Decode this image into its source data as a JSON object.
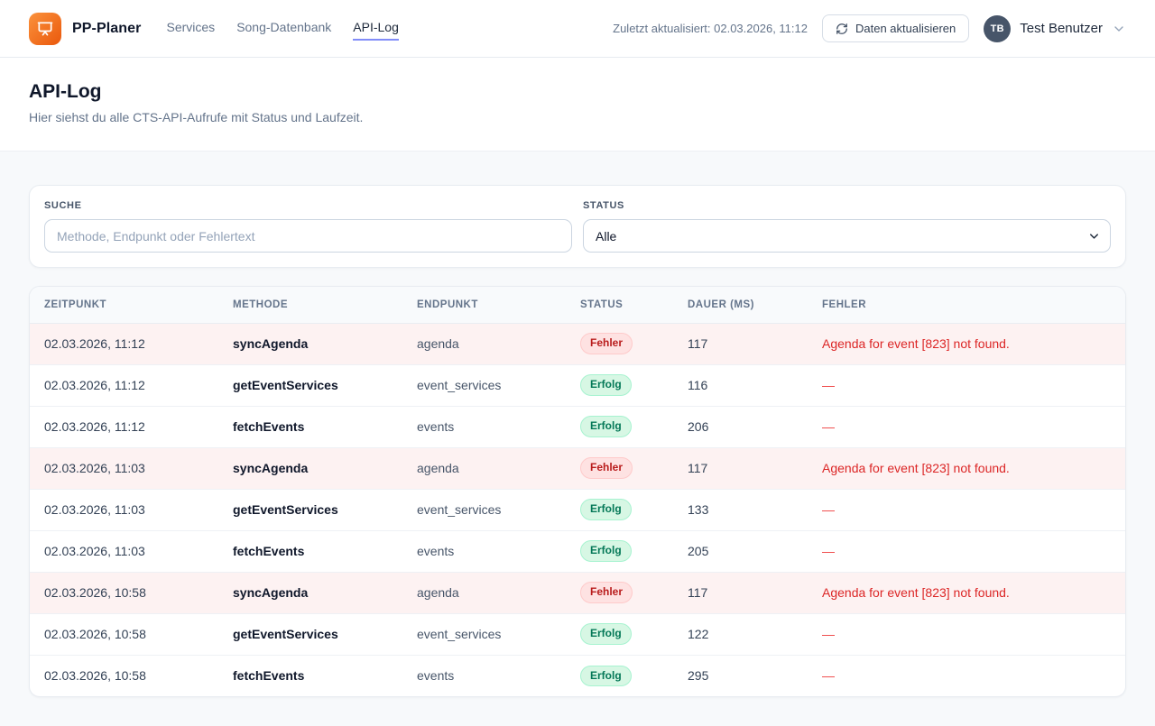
{
  "brand": {
    "name": "PP-Planer"
  },
  "nav": {
    "items": [
      {
        "label": "Services",
        "active": false
      },
      {
        "label": "Song-Datenbank",
        "active": false
      },
      {
        "label": "API-Log",
        "active": true
      }
    ]
  },
  "header_bar": {
    "last_updated": "Zuletzt aktualisiert: 02.03.2026, 11:12",
    "refresh_label": "Daten aktualisieren",
    "user": {
      "initials": "TB",
      "name": "Test Benutzer"
    }
  },
  "page": {
    "title": "API-Log",
    "subtitle": "Hier siehst du alle CTS-API-Aufrufe mit Status und Laufzeit."
  },
  "filters": {
    "search_label": "Suche",
    "search_placeholder": "Methode, Endpunkt oder Fehlertext",
    "search_value": "",
    "status_label": "Status",
    "status_value": "Alle"
  },
  "table": {
    "columns": [
      "Zeitpunkt",
      "Methode",
      "Endpunkt",
      "Status",
      "Dauer (ms)",
      "Fehler"
    ],
    "rows": [
      {
        "timestamp": "02.03.2026, 11:12",
        "method": "syncAgenda",
        "endpoint": "agenda",
        "status": "Fehler",
        "status_type": "error",
        "duration_ms": "117",
        "error": "Agenda for event [823] not found."
      },
      {
        "timestamp": "02.03.2026, 11:12",
        "method": "getEventServices",
        "endpoint": "event_services",
        "status": "Erfolg",
        "status_type": "success",
        "duration_ms": "116",
        "error": "—"
      },
      {
        "timestamp": "02.03.2026, 11:12",
        "method": "fetchEvents",
        "endpoint": "events",
        "status": "Erfolg",
        "status_type": "success",
        "duration_ms": "206",
        "error": "—"
      },
      {
        "timestamp": "02.03.2026, 11:03",
        "method": "syncAgenda",
        "endpoint": "agenda",
        "status": "Fehler",
        "status_type": "error",
        "duration_ms": "117",
        "error": "Agenda for event [823] not found."
      },
      {
        "timestamp": "02.03.2026, 11:03",
        "method": "getEventServices",
        "endpoint": "event_services",
        "status": "Erfolg",
        "status_type": "success",
        "duration_ms": "133",
        "error": "—"
      },
      {
        "timestamp": "02.03.2026, 11:03",
        "method": "fetchEvents",
        "endpoint": "events",
        "status": "Erfolg",
        "status_type": "success",
        "duration_ms": "205",
        "error": "—"
      },
      {
        "timestamp": "02.03.2026, 10:58",
        "method": "syncAgenda",
        "endpoint": "agenda",
        "status": "Fehler",
        "status_type": "error",
        "duration_ms": "117",
        "error": "Agenda for event [823] not found."
      },
      {
        "timestamp": "02.03.2026, 10:58",
        "method": "getEventServices",
        "endpoint": "event_services",
        "status": "Erfolg",
        "status_type": "success",
        "duration_ms": "122",
        "error": "—"
      },
      {
        "timestamp": "02.03.2026, 10:58",
        "method": "fetchEvents",
        "endpoint": "events",
        "status": "Erfolg",
        "status_type": "success",
        "duration_ms": "295",
        "error": "—"
      }
    ]
  },
  "icons": {
    "logo": "presentation-icon",
    "refresh": "refresh-icon",
    "user_chevron": "chevron-down-icon",
    "select_chevron": "chevron-down-icon"
  },
  "colors": {
    "brand_gradient_start": "#fb923c",
    "brand_gradient_end": "#ea580c",
    "active_nav_underline": "#818cf8",
    "error_text": "#dc2626",
    "error_badge_bg": "#fee2e2",
    "error_row_bg": "#fdf2f2",
    "success_text": "#047857",
    "success_badge_bg": "#d7f7e4",
    "avatar_bg": "#475569",
    "page_bg": "#f7f9fb"
  }
}
